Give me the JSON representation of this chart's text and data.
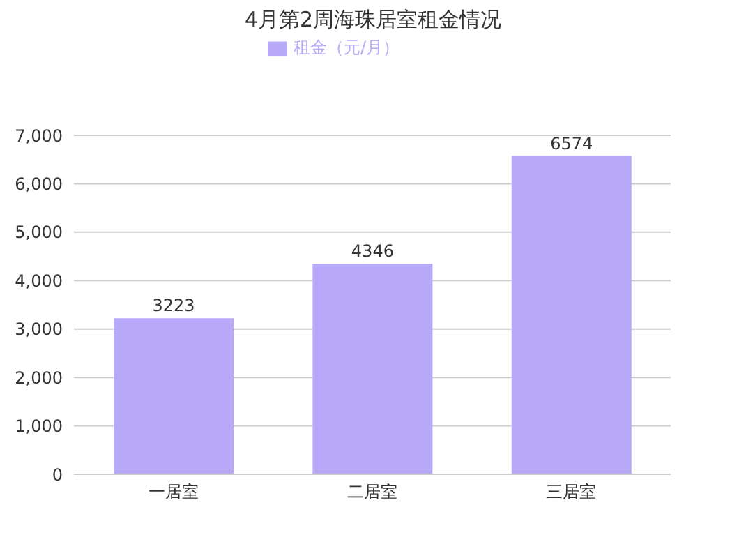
{
  "chart_data": {
    "type": "bar",
    "title": "4月第2周海珠居室租金情况",
    "categories": [
      "一居室",
      "二居室",
      "三居室"
    ],
    "series": [
      {
        "name": "租金（元/月）",
        "color": "#b7a9f8",
        "values": [
          3223,
          4346,
          6574
        ]
      }
    ],
    "ylim": [
      0,
      7000
    ],
    "yticks": [
      {
        "value": 0,
        "label": "0"
      },
      {
        "value": 1000,
        "label": "1,000"
      },
      {
        "value": 2000,
        "label": "2,000"
      },
      {
        "value": 3000,
        "label": "3,000"
      },
      {
        "value": 4000,
        "label": "4,000"
      },
      {
        "value": 5000,
        "label": "5,000"
      },
      {
        "value": 6000,
        "label": "6,000"
      },
      {
        "value": 7000,
        "label": "7,000"
      }
    ],
    "grid": "y",
    "legend": "top",
    "data_labels": true
  }
}
